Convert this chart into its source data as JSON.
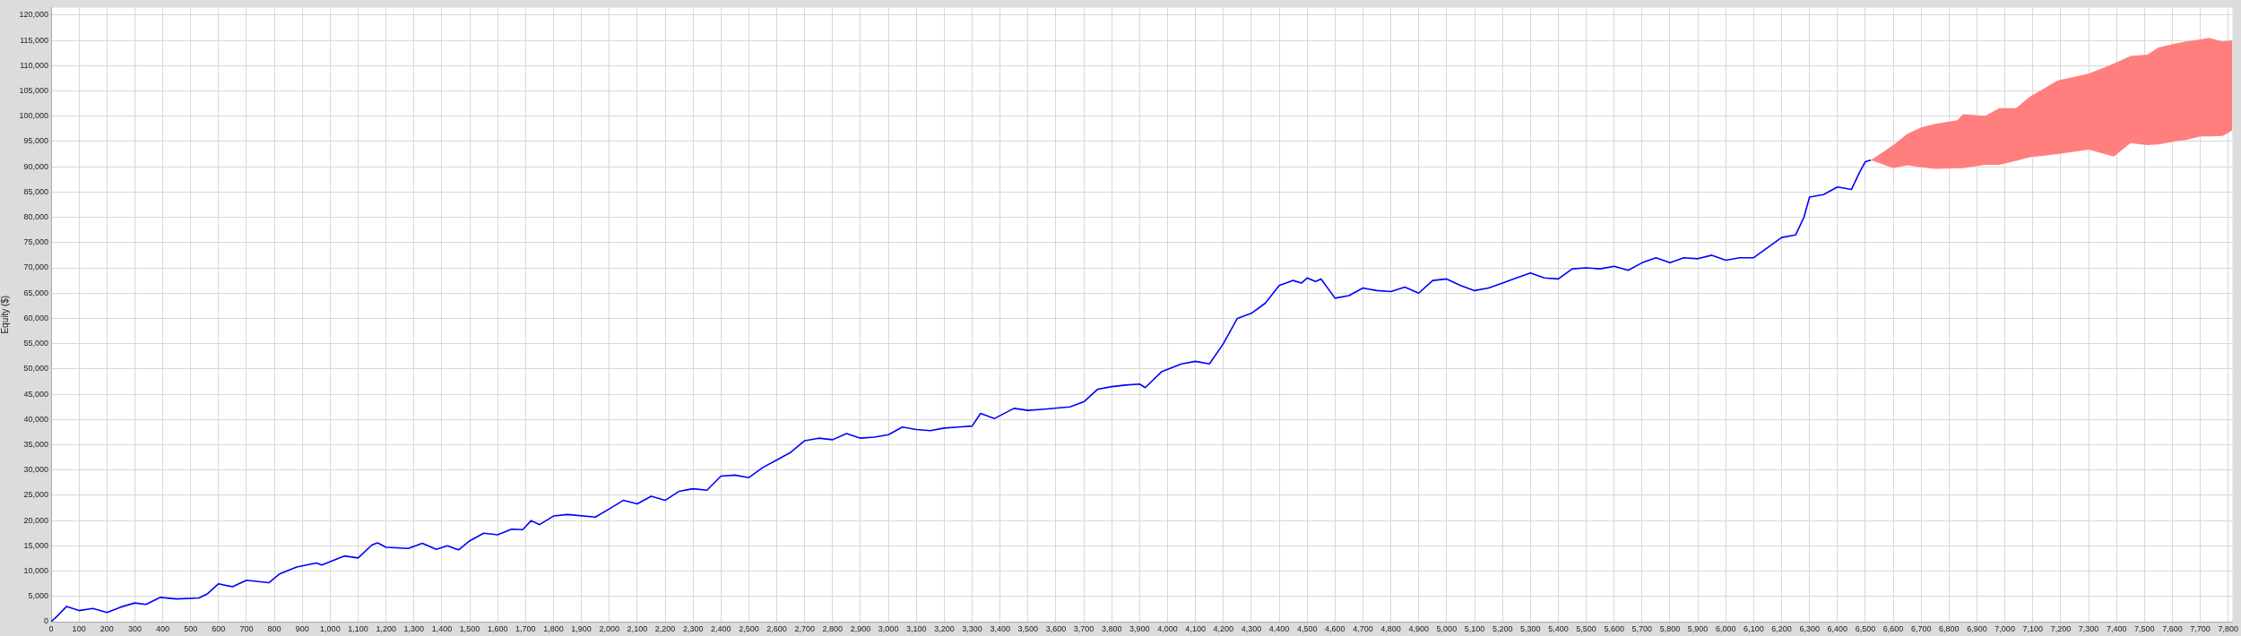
{
  "chart_data": {
    "type": "line",
    "ylabel": "Equity ($)",
    "xlim": [
      0,
      7815
    ],
    "ylim": [
      0,
      121500
    ],
    "grid": true,
    "legend": false,
    "marker": "none",
    "line_style": "solid",
    "xticks": [
      0,
      100,
      200,
      300,
      400,
      500,
      600,
      700,
      800,
      900,
      {
        "value": 1000,
        "label": "1,000"
      },
      {
        "value": 1100,
        "label": "1,100"
      },
      {
        "value": 1200,
        "label": "1,200"
      },
      {
        "value": 1300,
        "label": "1,300"
      },
      {
        "value": 1400,
        "label": "1,400"
      },
      {
        "value": 1500,
        "label": "1,500"
      },
      {
        "value": 1600,
        "label": "1,600"
      },
      {
        "value": 1700,
        "label": "1,700"
      },
      {
        "value": 1800,
        "label": "1,800"
      },
      {
        "value": 1900,
        "label": "1,900"
      },
      {
        "value": 2000,
        "label": "2,000"
      },
      {
        "value": 2100,
        "label": "2,100"
      },
      {
        "value": 2200,
        "label": "2,200"
      },
      {
        "value": 2300,
        "label": "2,300"
      },
      {
        "value": 2400,
        "label": "2,400"
      },
      {
        "value": 2500,
        "label": "2,500"
      },
      {
        "value": 2600,
        "label": "2,600"
      },
      {
        "value": 2700,
        "label": "2,700"
      },
      {
        "value": 2800,
        "label": "2,800"
      },
      {
        "value": 2900,
        "label": "2,900"
      },
      {
        "value": 3000,
        "label": "3,000"
      },
      {
        "value": 3100,
        "label": "3,100"
      },
      {
        "value": 3200,
        "label": "3,200"
      },
      {
        "value": 3300,
        "label": "3,300"
      },
      {
        "value": 3400,
        "label": "3,400"
      },
      {
        "value": 3500,
        "label": "3,500"
      },
      {
        "value": 3600,
        "label": "3,600"
      },
      {
        "value": 3700,
        "label": "3,700"
      },
      {
        "value": 3800,
        "label": "3,800"
      },
      {
        "value": 3900,
        "label": "3,900"
      },
      {
        "value": 4000,
        "label": "4,000"
      },
      {
        "value": 4100,
        "label": "4,100"
      },
      {
        "value": 4200,
        "label": "4,200"
      },
      {
        "value": 4300,
        "label": "4,300"
      },
      {
        "value": 4400,
        "label": "4,400"
      },
      {
        "value": 4500,
        "label": "4,500"
      },
      {
        "value": 4600,
        "label": "4,600"
      },
      {
        "value": 4700,
        "label": "4,700"
      },
      {
        "value": 4800,
        "label": "4,800"
      },
      {
        "value": 4900,
        "label": "4,900"
      },
      {
        "value": 5000,
        "label": "5,000"
      },
      {
        "value": 5100,
        "label": "5,100"
      },
      {
        "value": 5200,
        "label": "5,200"
      },
      {
        "value": 5300,
        "label": "5,300"
      },
      {
        "value": 5400,
        "label": "5,400"
      },
      {
        "value": 5500,
        "label": "5,500"
      },
      {
        "value": 5600,
        "label": "5,600"
      },
      {
        "value": 5700,
        "label": "5,700"
      },
      {
        "value": 5800,
        "label": "5,800"
      },
      {
        "value": 5900,
        "label": "5,900"
      },
      {
        "value": 6000,
        "label": "6,000"
      },
      {
        "value": 6100,
        "label": "6,100"
      },
      {
        "value": 6200,
        "label": "6,200"
      },
      {
        "value": 6300,
        "label": "6,300"
      },
      {
        "value": 6400,
        "label": "6,400"
      },
      {
        "value": 6500,
        "label": "6,500"
      },
      {
        "value": 6600,
        "label": "6,600"
      },
      {
        "value": 6700,
        "label": "6,700"
      },
      {
        "value": 6800,
        "label": "6,800"
      },
      {
        "value": 6900,
        "label": "6,900"
      },
      {
        "value": 7000,
        "label": "7,000"
      },
      {
        "value": 7100,
        "label": "7,100"
      },
      {
        "value": 7200,
        "label": "7,200"
      },
      {
        "value": 7300,
        "label": "7,300"
      },
      {
        "value": 7400,
        "label": "7,400"
      },
      {
        "value": 7500,
        "label": "7,500"
      },
      {
        "value": 7600,
        "label": "7,600"
      },
      {
        "value": 7700,
        "label": "7,700"
      },
      {
        "value": 7800,
        "label": "7,800"
      }
    ],
    "yticks": [
      0,
      {
        "value": 5000,
        "label": "5,000"
      },
      {
        "value": 10000,
        "label": "10,000"
      },
      {
        "value": 15000,
        "label": "15,000"
      },
      {
        "value": 20000,
        "label": "20,000"
      },
      {
        "value": 25000,
        "label": "25,000"
      },
      {
        "value": 30000,
        "label": "30,000"
      },
      {
        "value": 35000,
        "label": "35,000"
      },
      {
        "value": 40000,
        "label": "40,000"
      },
      {
        "value": 45000,
        "label": "45,000"
      },
      {
        "value": 50000,
        "label": "50,000"
      },
      {
        "value": 55000,
        "label": "55,000"
      },
      {
        "value": 60000,
        "label": "60,000"
      },
      {
        "value": 65000,
        "label": "65,000"
      },
      {
        "value": 70000,
        "label": "70,000"
      },
      {
        "value": 75000,
        "label": "75,000"
      },
      {
        "value": 80000,
        "label": "80,000"
      },
      {
        "value": 85000,
        "label": "85,000"
      },
      {
        "value": 90000,
        "label": "90,000"
      },
      {
        "value": 95000,
        "label": "95,000"
      },
      {
        "value": 100000,
        "label": "100,000"
      },
      {
        "value": 105000,
        "label": "105,000"
      },
      {
        "value": 110000,
        "label": "110,000"
      },
      {
        "value": 115000,
        "label": "115,000"
      },
      {
        "value": 120000,
        "label": "120,000"
      }
    ],
    "series": [
      {
        "color": "#0000ff",
        "x": [
          0,
          20,
          55,
          100,
          150,
          200,
          250,
          300,
          340,
          390,
          450,
          530,
          560,
          600,
          650,
          700,
          780,
          820,
          880,
          950,
          970,
          1050,
          1100,
          1150,
          1170,
          1200,
          1280,
          1330,
          1380,
          1420,
          1460,
          1500,
          1550,
          1600,
          1650,
          1690,
          1720,
          1750,
          1800,
          1850,
          1950,
          2000,
          2050,
          2100,
          2150,
          2200,
          2250,
          2300,
          2350,
          2400,
          2450,
          2500,
          2550,
          2600,
          2650,
          2700,
          2750,
          2800,
          2850,
          2900,
          2950,
          3000,
          3050,
          3100,
          3150,
          3200,
          3250,
          3300,
          3330,
          3380,
          3450,
          3500,
          3550,
          3650,
          3700,
          3750,
          3800,
          3850,
          3900,
          3920,
          3980,
          4050,
          4100,
          4150,
          4200,
          4250,
          4300,
          4350,
          4400,
          4450,
          4480,
          4500,
          4530,
          4550,
          4600,
          4650,
          4700,
          4750,
          4800,
          4850,
          4900,
          4950,
          5000,
          5050,
          5100,
          5150,
          5200,
          5250,
          5300,
          5350,
          5400,
          5450,
          5500,
          5550,
          5600,
          5650,
          5700,
          5750,
          5800,
          5850,
          5900,
          5950,
          6000,
          6050,
          6100,
          6150,
          6200,
          6250,
          6280,
          6300,
          6350,
          6400,
          6450,
          6480,
          6500,
          6520
        ],
        "values": [
          0,
          1000,
          3000,
          2200,
          2600,
          1800,
          2900,
          3700,
          3400,
          4800,
          4500,
          4700,
          5500,
          7500,
          6900,
          8200,
          7700,
          9500,
          10800,
          11600,
          11200,
          13000,
          12600,
          15200,
          15600,
          14700,
          14500,
          15500,
          14300,
          15000,
          14200,
          16000,
          17500,
          17200,
          18300,
          18200,
          20000,
          19200,
          20900,
          21200,
          20700,
          22300,
          24000,
          23300,
          24800,
          24000,
          25800,
          26300,
          26000,
          28800,
          29000,
          28500,
          30500,
          32000,
          33500,
          35800,
          36300,
          36000,
          37200,
          36300,
          36500,
          37000,
          38500,
          38000,
          37800,
          38300,
          38500,
          38700,
          41200,
          40200,
          42200,
          41800,
          42000,
          42500,
          43500,
          46000,
          46500,
          46800,
          47000,
          46300,
          49500,
          51000,
          51500,
          51000,
          55000,
          60000,
          61000,
          63000,
          66500,
          67500,
          67000,
          68000,
          67300,
          67800,
          64000,
          64500,
          66000,
          65500,
          65300,
          66200,
          65000,
          67500,
          67800,
          66500,
          65500,
          66000,
          67000,
          68000,
          69000,
          68000,
          67800,
          69800,
          70000,
          69800,
          70300,
          69500,
          71000,
          72000,
          71000,
          72000,
          71800,
          72500,
          71500,
          72000,
          72000,
          74000,
          76000,
          76500,
          80000,
          84000,
          84500,
          86000,
          85500,
          89000,
          91000,
          91300
        ]
      },
      {
        "type": "area",
        "color": "#ff7f7f",
        "x": [
          6520,
          6600,
          6650,
          6700,
          6750,
          6830,
          6850,
          6930,
          6980,
          7040,
          7090,
          7190,
          7300,
          7390,
          7450,
          7510,
          7550,
          7620,
          7650,
          7700,
          7730,
          7780,
          7815
        ],
        "values": [
          null,
          null,
          null,
          null,
          null,
          null,
          null,
          null,
          null,
          null,
          null,
          null,
          null,
          null,
          null,
          null,
          null,
          null,
          null,
          null,
          null,
          null,
          null
        ],
        "lower": [
          91300,
          89700,
          90300,
          89900,
          89600,
          89700,
          89700,
          90400,
          90400,
          91200,
          91900,
          92500,
          93400,
          92000,
          94700,
          94300,
          94400,
          95100,
          95300,
          96000,
          96000,
          96100,
          97200
        ],
        "upper": [
          91300,
          94300,
          96500,
          97800,
          98500,
          99200,
          100400,
          100100,
          101600,
          101600,
          103900,
          107100,
          108400,
          110400,
          111900,
          112200,
          113600,
          114500,
          114800,
          115200,
          115500,
          114800,
          115000
        ]
      }
    ]
  }
}
